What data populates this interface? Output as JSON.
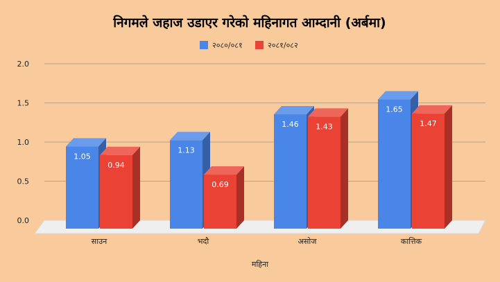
{
  "chart_data": {
    "type": "bar",
    "title": "निगमले जहाज उडाएर गरेको महिनागत आम्दानी (अर्बमा)",
    "xlabel": "महिना",
    "ylabel": "",
    "categories": [
      "साउन",
      "भदौ",
      "असोज",
      "कात्तिक"
    ],
    "series": [
      {
        "name": "२०८०/०८१",
        "values": [
          1.05,
          1.13,
          1.46,
          1.65
        ],
        "color": "#4a86e8"
      },
      {
        "name": "२०८१/०८२",
        "values": [
          0.94,
          0.69,
          1.43,
          1.47
        ],
        "color": "#ea4335"
      }
    ],
    "ylim": [
      0,
      2
    ],
    "yticks": [
      "0.0",
      "0.5",
      "1.0",
      "1.5",
      "2.0"
    ],
    "grid": true,
    "legend": "top",
    "background": "#f9cb9c",
    "style": "3d"
  }
}
